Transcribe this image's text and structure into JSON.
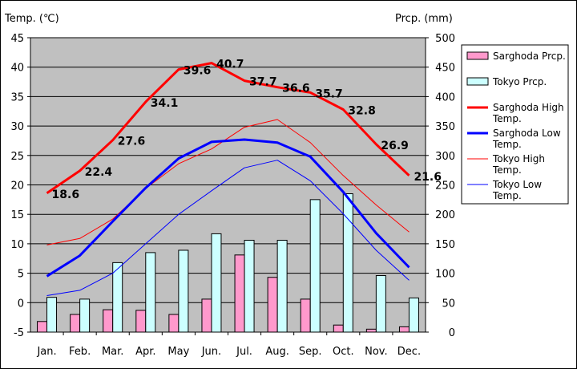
{
  "chart_data": {
    "type": "bar+line",
    "categories": [
      "Jan.",
      "Feb.",
      "Mar.",
      "Apr.",
      "May",
      "Jun.",
      "Jul.",
      "Aug.",
      "Sep.",
      "Oct.",
      "Nov.",
      "Dec."
    ],
    "y_left": {
      "label": "Temp. (℃)",
      "min": -5,
      "max": 45,
      "step": 5
    },
    "y_right": {
      "label": "Prcp. (mm)",
      "min": 0,
      "max": 500,
      "step": 50
    },
    "series": [
      {
        "name": "Sarghoda Prcp.",
        "kind": "bar",
        "axis": "right",
        "color": "#ff99cc",
        "values": [
          18,
          30,
          38,
          37,
          30,
          56,
          131,
          93,
          56,
          12,
          5,
          9
        ]
      },
      {
        "name": "Tokyo Prcp.",
        "kind": "bar",
        "axis": "right",
        "color": "#ccffff",
        "values": [
          59,
          56,
          118,
          135,
          139,
          167,
          156,
          156,
          225,
          235,
          96,
          58
        ]
      },
      {
        "name": "Sarghoda High Temp.",
        "kind": "line",
        "axis": "left",
        "color": "#ff0000",
        "width": "thick",
        "values": [
          18.6,
          22.4,
          27.6,
          34.1,
          39.6,
          40.7,
          37.7,
          36.6,
          35.7,
          32.8,
          26.9,
          21.6
        ],
        "data_labels": [
          "18.6",
          "22.4",
          "27.6",
          "34.1",
          "39.6",
          "40.7",
          "37.7",
          "36.6",
          "35.7",
          "32.8",
          "26.9",
          "21.6"
        ]
      },
      {
        "name": "Sarghoda Low Temp.",
        "kind": "line",
        "axis": "left",
        "color": "#0000ff",
        "width": "thick",
        "values": [
          4.5,
          8.0,
          13.8,
          19.5,
          24.5,
          27.3,
          27.7,
          27.2,
          24.8,
          18.8,
          11.8,
          6.0
        ]
      },
      {
        "name": "Tokyo High Temp.",
        "kind": "line",
        "axis": "left",
        "color": "#ff0000",
        "width": "thin",
        "values": [
          9.8,
          10.9,
          14.2,
          19.4,
          23.6,
          26.1,
          29.8,
          31.1,
          27.2,
          21.6,
          16.6,
          12.0
        ]
      },
      {
        "name": "Tokyo Low Temp.",
        "kind": "line",
        "axis": "left",
        "color": "#0000ff",
        "width": "thin",
        "values": [
          1.2,
          2.1,
          5.0,
          10.0,
          15.0,
          19.0,
          22.9,
          24.2,
          20.7,
          15.1,
          8.9,
          3.8
        ]
      }
    ],
    "legend": {
      "position": "right",
      "entries": [
        {
          "label": "Sarghoda Prcp.",
          "lines": [
            "Sarghoda Prcp."
          ]
        },
        {
          "label": "Tokyo Prcp.",
          "lines": [
            "Tokyo Prcp."
          ]
        },
        {
          "label": "Sarghoda High Temp.",
          "lines": [
            "Sarghoda High",
            "Temp."
          ]
        },
        {
          "label": "Sarghoda Low Temp.",
          "lines": [
            "Sarghoda Low",
            "Temp."
          ]
        },
        {
          "label": "Tokyo High Temp.",
          "lines": [
            "Tokyo High",
            "Temp."
          ]
        },
        {
          "label": "Tokyo Low Temp.",
          "lines": [
            "Tokyo Low",
            "Temp."
          ]
        }
      ]
    },
    "plot_background": "#c0c0c0",
    "grid": true
  }
}
